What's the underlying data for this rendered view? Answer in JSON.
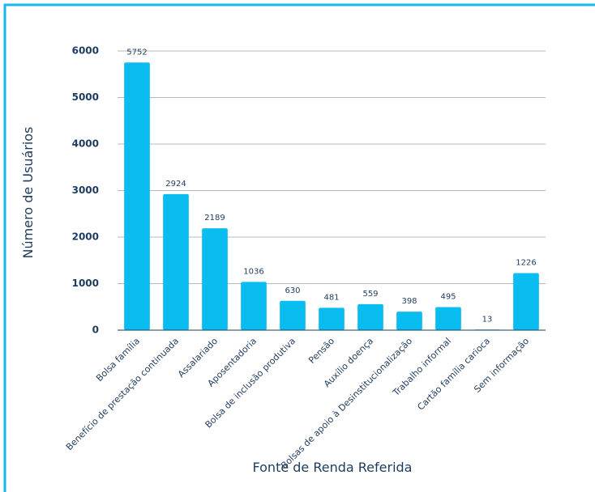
{
  "chart_data": {
    "type": "bar",
    "x_label": "Fonte de Renda Referida",
    "y_label": "Número de Usuários",
    "categories": [
      "Bolsa família",
      "Benefício de prestação continuada",
      "Assalariado",
      "Aposentadoria",
      "Bolsa de inclusão produtiva",
      "Pensão",
      "Auxílio doença",
      "Bolsas de apoio à Desinstitucionalização",
      "Trabalho informal",
      "Cartão família carioca",
      "Sem informação"
    ],
    "values": [
      5752,
      2924,
      2189,
      1036,
      630,
      481,
      559,
      398,
      495,
      13,
      1226
    ],
    "color": "#0abdf0",
    "ylim": [
      0,
      6000
    ],
    "yticks": [
      0,
      1000,
      2000,
      3000,
      4000,
      5000,
      6000
    ],
    "grid": true
  }
}
